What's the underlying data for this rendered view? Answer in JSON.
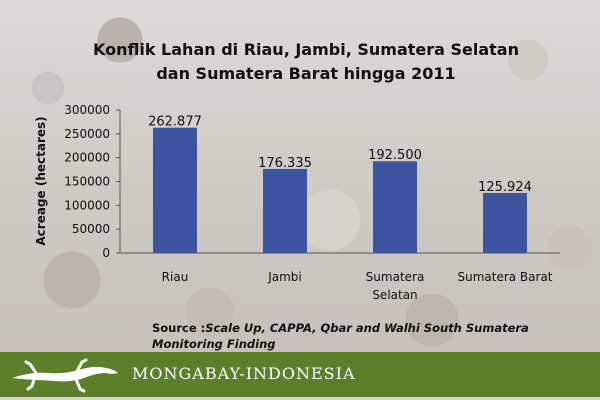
{
  "chart_data": {
    "type": "bar",
    "title_lines": [
      "Konflik Lahan di Riau, Jambi, Sumatera Selatan",
      "dan Sumatera Barat hingga 2011"
    ],
    "ylabel": "Acreage (hectares)",
    "xlabel": "",
    "categories": [
      [
        "Riau"
      ],
      [
        "Jambi"
      ],
      [
        "Sumatera",
        "Selatan"
      ],
      [
        "Sumatera Barat"
      ]
    ],
    "values": [
      262877,
      176335,
      192500,
      125924
    ],
    "data_labels": [
      "262.877",
      "176.335",
      "192.500",
      "125.924"
    ],
    "ylim": [
      0,
      300000
    ],
    "yticks": [
      0,
      50000,
      100000,
      150000,
      200000,
      250000,
      300000
    ],
    "ytick_labels": [
      "0",
      "50000",
      "100000",
      "150000",
      "200000",
      "250000",
      "300000"
    ],
    "legend": "none",
    "grid": false,
    "bar_color": "#3d55a0"
  },
  "source": {
    "head": "Source :",
    "body": "Scale Up, CAPPA, Qbar and Walhi South Sumatera Monitoring Finding"
  },
  "footer": {
    "brand": "MONGABAY-INDONESIA",
    "logo_icon": "gecko-icon",
    "band_color": "#5c7f2c"
  }
}
